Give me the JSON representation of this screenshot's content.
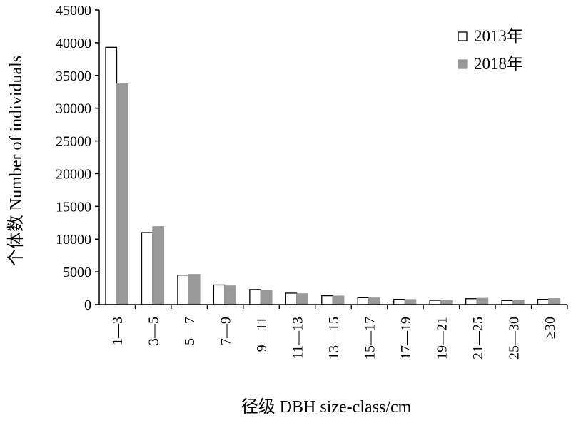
{
  "chart_data": {
    "type": "bar",
    "title": "",
    "xlabel": "径级 DBH size-class/cm",
    "ylabel": "个体数 Number of individuals",
    "ylim": [
      0,
      45000
    ],
    "yticks": [
      "0",
      "5000",
      "10000",
      "15000",
      "20000",
      "25000",
      "30000",
      "35000",
      "40000",
      "45000"
    ],
    "grid": false,
    "legend_position": "top-right",
    "categories": [
      "1—3",
      "3—5",
      "5—7",
      "7—9",
      "9—11",
      "11—13",
      "13—15",
      "15—17",
      "17—19",
      "19—21",
      "21—25",
      "25—30",
      "≥30"
    ],
    "series": [
      {
        "name": "2013年",
        "fill": "#ffffff",
        "stroke": "#000000",
        "values": [
          39300,
          11000,
          4500,
          3000,
          2300,
          1750,
          1350,
          1050,
          800,
          650,
          900,
          620,
          800
        ]
      },
      {
        "name": "2018年",
        "fill": "#999999",
        "stroke": "#999999",
        "values": [
          33700,
          11900,
          4600,
          2850,
          2150,
          1650,
          1300,
          1000,
          760,
          600,
          950,
          650,
          900
        ]
      }
    ]
  }
}
